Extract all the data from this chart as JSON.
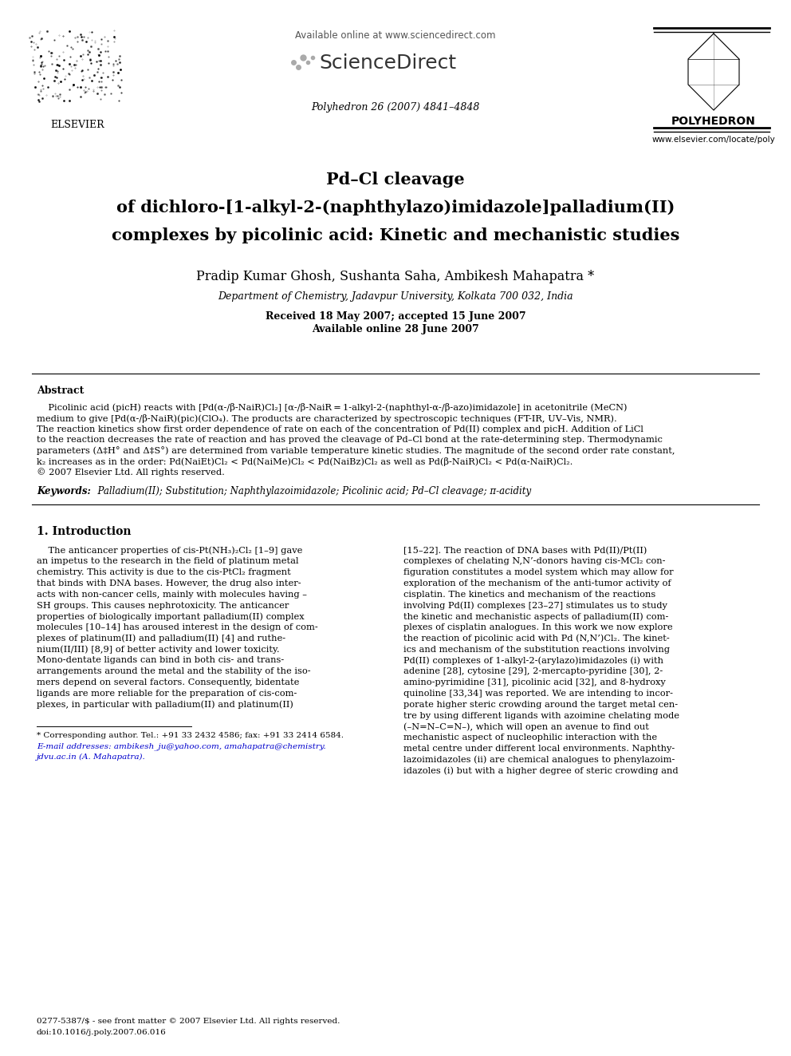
{
  "bg_color": "#ffffff",
  "available_online": "Available online at www.sciencedirect.com",
  "journal_info": "Polyhedron 26 (2007) 4841–4848",
  "elsevier_label": "ELSEVIER",
  "sciencedirect_label": "ScienceDirect",
  "polyhedron_label": "POLYHEDRON",
  "website": "www.elsevier.com/locate/poly",
  "title_lines": [
    "Pd–Cl cleavage",
    "of dichloro-[1-alkyl-2-(naphthylazo)imidazole]palladium(II)",
    "complexes by picolinic acid: Kinetic and mechanistic studies"
  ],
  "authors": "Pradip Kumar Ghosh, Sushanta Saha, Ambikesh Mahapatra *",
  "affiliation": "Department of Chemistry, Jadavpur University, Kolkata 700 032, India",
  "received": "Received 18 May 2007; accepted 15 June 2007",
  "available": "Available online 28 June 2007",
  "abstract_label": "Abstract",
  "abstract_lines": [
    "    Picolinic acid (picH) reacts with [Pd(α-/β-NaiR)Cl₂] [α-/β-NaiR = 1-alkyl-2-(naphthyl-α-/β-azo)imidazole] in acetonitrile (MeCN)",
    "medium to give [Pd(α-/β-NaiR)(pic)(ClO₄). The products are characterized by spectroscopic techniques (FT-IR, UV–Vis, NMR).",
    "The reaction kinetics show first order dependence of rate on each of the concentration of Pd(II) complex and picH. Addition of LiCl",
    "to the reaction decreases the rate of reaction and has proved the cleavage of Pd–Cl bond at the rate-determining step. Thermodynamic",
    "parameters (Δ‡H° and Δ‡S°) are determined from variable temperature kinetic studies. The magnitude of the second order rate constant,",
    "k₂ increases as in the order: Pd(NaiEt)Cl₂ < Pd(NaiMe)Cl₂ < Pd(NaiBz)Cl₂ as well as Pd(β-NaiR)Cl₂ < Pd(α-NaiR)Cl₂.",
    "© 2007 Elsevier Ltd. All rights reserved."
  ],
  "keywords_label": "Keywords:",
  "keywords_text": "  Palladium(II); Substitution; Naphthylazoimidazole; Picolinic acid; Pd–Cl cleavage; π-acidity",
  "section1_label": "1. Introduction",
  "intro_left_lines": [
    "    The anticancer properties of cis-Pt(NH₃)₂Cl₂ [1–9] gave",
    "an impetus to the research in the field of platinum metal",
    "chemistry. This activity is due to the cis-PtCl₂ fragment",
    "that binds with DNA bases. However, the drug also inter-",
    "acts with non-cancer cells, mainly with molecules having –",
    "SH groups. This causes nephrotoxicity. The anticancer",
    "properties of biologically important palladium(II) complex",
    "molecules [10–14] has aroused interest in the design of com-",
    "plexes of platinum(II) and palladium(II) [4] and ruthe-",
    "nium(II/III) [8,9] of better activity and lower toxicity.",
    "Mono-dentate ligands can bind in both cis- and trans-",
    "arrangements around the metal and the stability of the iso-",
    "mers depend on several factors. Consequently, bidentate",
    "ligands are more reliable for the preparation of cis-com-",
    "plexes, in particular with palladium(II) and platinum(II)"
  ],
  "intro_right_lines": [
    "[15–22]. The reaction of DNA bases with Pd(II)/Pt(II)",
    "complexes of chelating N,N’-donors having cis-MCl₂ con-",
    "figuration constitutes a model system which may allow for",
    "exploration of the mechanism of the anti-tumor activity of",
    "cisplatin. The kinetics and mechanism of the reactions",
    "involving Pd(II) complexes [23–27] stimulates us to study",
    "the kinetic and mechanistic aspects of palladium(II) com-",
    "plexes of cisplatin analogues. In this work we now explore",
    "the reaction of picolinic acid with Pd (N,N’)Cl₂. The kinet-",
    "ics and mechanism of the substitution reactions involving",
    "Pd(II) complexes of 1-alkyl-2-(arylazo)imidazoles (i) with",
    "adenine [28], cytosine [29], 2-mercapto-pyridine [30], 2-",
    "amino-pyrimidine [31], picolinic acid [32], and 8-hydroxy",
    "quinoline [33,34] was reported. We are intending to incor-",
    "porate higher steric crowding around the target metal cen-",
    "tre by using different ligands with azoimine chelating mode",
    "(–N=N–C=N–), which will open an avenue to find out",
    "mechanistic aspect of nucleophilic interaction with the",
    "metal centre under different local environments. Naphthy-",
    "lazoimidazoles (ii) are chemical analogues to phenylazoim-",
    "idazoles (i) but with a higher degree of steric crowding and"
  ],
  "footnote_star": "* Corresponding author. Tel.: +91 33 2432 4586; fax: +91 33 2414 6584.",
  "footnote_email1": "E-mail addresses: ambikesh_ju@yahoo.com, amahapatra@chemistry.",
  "footnote_email2": "jdvu.ac.in (A. Mahapatra).",
  "copyright_line": "0277-5387/$ - see front matter © 2007 Elsevier Ltd. All rights reserved.",
  "doi_line": "doi:10.1016/j.poly.2007.06.016"
}
